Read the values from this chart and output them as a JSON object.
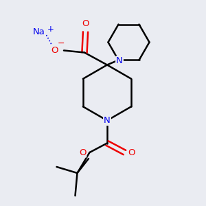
{
  "background_color": "#eaecf2",
  "bond_color": "#000000",
  "atom_colors": {
    "N": "#0000ee",
    "O": "#ee0000",
    "Na": "#0000ee",
    "C": "#000000"
  },
  "figsize": [
    3.0,
    3.0
  ],
  "dpi": 100
}
